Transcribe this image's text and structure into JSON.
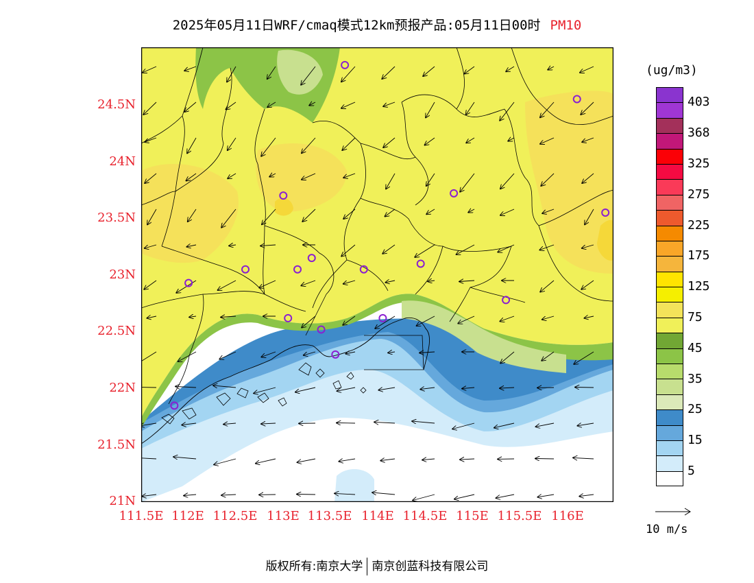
{
  "title": {
    "main": "2025年05月11日WRF/cmaq模式12km预报产品:05月11日00时",
    "pollutant": "PM10"
  },
  "map": {
    "lon_labels": [
      "111.5E",
      "112E",
      "112.5E",
      "113E",
      "113.5E",
      "114E",
      "114.5E",
      "115E",
      "115.5E",
      "116E"
    ],
    "lat_labels": [
      "24.5N",
      "24N",
      "23.5N",
      "23N",
      "22.5N",
      "22N",
      "21.5N",
      "21N"
    ],
    "stations": [
      {
        "lon": 113.65,
        "lat": 24.85
      },
      {
        "lon": 116.1,
        "lat": 24.55
      },
      {
        "lon": 113.0,
        "lat": 23.7
      },
      {
        "lon": 114.8,
        "lat": 23.72
      },
      {
        "lon": 116.4,
        "lat": 23.55
      },
      {
        "lon": 113.3,
        "lat": 23.15
      },
      {
        "lon": 112.6,
        "lat": 23.05
      },
      {
        "lon": 113.15,
        "lat": 23.05
      },
      {
        "lon": 113.85,
        "lat": 23.05
      },
      {
        "lon": 114.45,
        "lat": 23.1
      },
      {
        "lon": 112.0,
        "lat": 22.93
      },
      {
        "lon": 115.35,
        "lat": 22.78
      },
      {
        "lon": 113.05,
        "lat": 22.62
      },
      {
        "lon": 114.05,
        "lat": 22.62
      },
      {
        "lon": 113.4,
        "lat": 22.52
      },
      {
        "lon": 113.55,
        "lat": 22.3
      },
      {
        "lon": 111.85,
        "lat": 21.85
      }
    ],
    "colors": {
      "ocean_clean": "#ffffff",
      "land_base": "#f0f059",
      "land_high": "#f5e15a",
      "hotspot": "#f5d839"
    }
  },
  "legend": {
    "unit": "(ug/m3)",
    "labels": [
      "403",
      "368",
      "325",
      "275",
      "225",
      "175",
      "125",
      "75",
      "45",
      "35",
      "25",
      "15",
      "5"
    ],
    "colors": [
      "#8a34cf",
      "#a036d4",
      "#a3305a",
      "#c21778",
      "#fb0006",
      "#f50a42",
      "#fa3a58",
      "#f06464",
      "#ee5a2d",
      "#f58a00",
      "#f9a628",
      "#f5b53c",
      "#ffe400",
      "#f5ef00",
      "#f3e35a",
      "#f0f059",
      "#71a734",
      "#8cc447",
      "#b8dc6c",
      "#c8e08f",
      "#dbe9b9",
      "#3f8bc9",
      "#65a8dc",
      "#a3d5f2",
      "#d3ecfa",
      "#ffffff"
    ]
  },
  "reference_vector": {
    "label": "10 m/s"
  },
  "footer": {
    "left": "版权所有:南京大学",
    "right": "南京创蓝科技有限公司"
  }
}
